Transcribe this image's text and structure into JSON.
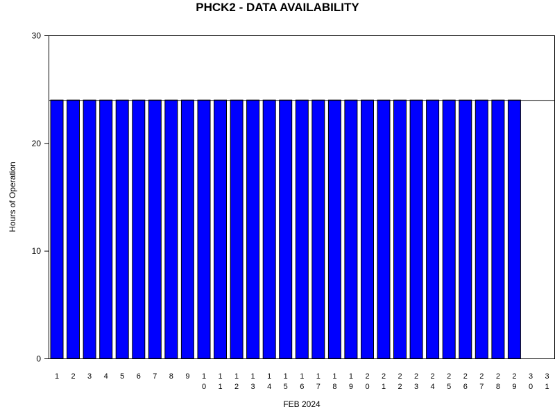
{
  "chart_data": {
    "type": "bar",
    "title": "PHCK2 - DATA AVAILABILITY",
    "xlabel": "FEB 2024",
    "ylabel": "Hours of Operation",
    "ylim": [
      0,
      30
    ],
    "yticks": [
      0,
      10,
      20,
      30
    ],
    "reference_line": 24,
    "grid": false,
    "legend": "none",
    "bar_color": "#0000ff",
    "categories": [
      "1",
      "2",
      "3",
      "4",
      "5",
      "6",
      "7",
      "8",
      "9",
      "10",
      "11",
      "12",
      "13",
      "14",
      "15",
      "16",
      "17",
      "18",
      "19",
      "20",
      "21",
      "22",
      "23",
      "24",
      "25",
      "26",
      "27",
      "28",
      "29",
      "30",
      "31"
    ],
    "values": [
      24,
      24,
      24,
      24,
      24,
      24,
      24,
      24,
      24,
      24,
      24,
      24,
      24,
      24,
      24,
      24,
      24,
      24,
      24,
      24,
      24,
      24,
      24,
      24,
      24,
      24,
      24,
      24,
      24,
      null,
      null
    ]
  }
}
